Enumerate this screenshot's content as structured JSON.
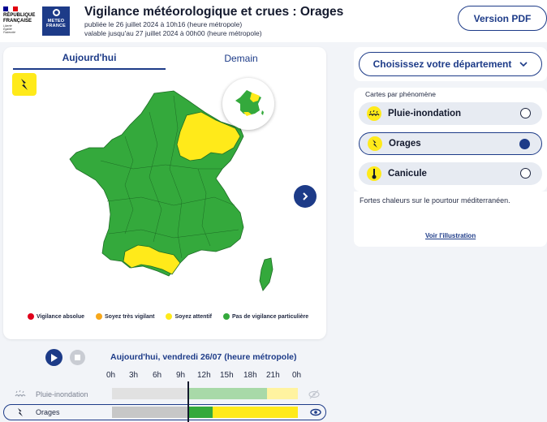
{
  "header": {
    "rf_line1": "RÉPUBLIQUE",
    "rf_line2": "FRANÇAISE",
    "rf_motto1": "Liberté",
    "rf_motto2": "Égalité",
    "rf_motto3": "Fraternité",
    "mf_line1": "METEO",
    "mf_line2": "FRANCE",
    "title": "Vigilance météorologique et crues : Orages",
    "published": "publiée le 26 juillet 2024 à 10h16 (heure métropole)",
    "valid": "valable jusqu'au 27 juillet 2024 à 00h00 (heure métropole)",
    "pdf_button": "Version PDF"
  },
  "map": {
    "tab_today": "Aujourd'hui",
    "tab_tomorrow": "Demain",
    "legend": [
      {
        "label": "Vigilance absolue",
        "color": "#e0001b"
      },
      {
        "label": "Soyez très vigilant",
        "color": "#f7a81b"
      },
      {
        "label": "Soyez attentif",
        "color": "#ffea1a"
      },
      {
        "label": "Pas de vigilance particulière",
        "color": "#34a93c"
      }
    ]
  },
  "sidebar": {
    "dept_button": "Choisissez votre département",
    "phenomena_title": "Cartes par phénomène",
    "phenomena": [
      {
        "label": "Pluie-inondation",
        "icon": "rain-flood-icon",
        "selected": false
      },
      {
        "label": "Orages",
        "icon": "lightning-icon",
        "selected": true
      },
      {
        "label": "Canicule",
        "icon": "thermometer-icon",
        "selected": false
      }
    ],
    "info_text": "Fortes chaleurs sur le pourtour méditerranéen.",
    "info_link": "Voir l'illustration"
  },
  "timeline": {
    "date_label": "Aujourd'hui, vendredi 26/07 (heure métropole)",
    "hours": [
      "0h",
      "3h",
      "6h",
      "9h",
      "12h",
      "15h",
      "18h",
      "21h",
      "0h"
    ],
    "rows": [
      {
        "label": "Pluie-inondation",
        "active": false
      },
      {
        "label": "Orages",
        "active": true
      }
    ]
  },
  "colors": {
    "accent": "#1d3b88",
    "green": "#34a93c",
    "yellow": "#ffea1a"
  }
}
